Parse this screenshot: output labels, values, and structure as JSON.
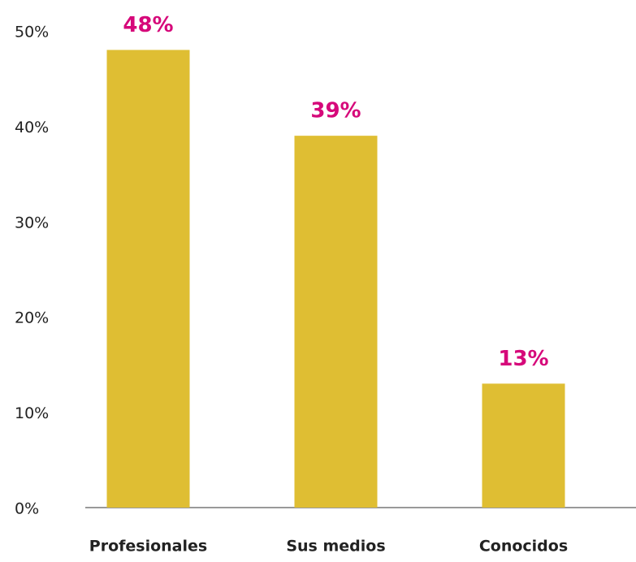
{
  "chart_data": {
    "type": "bar",
    "categories": [
      "Profesionales",
      "Sus medios",
      "Conocidos"
    ],
    "values": [
      48,
      39,
      13
    ],
    "value_labels": [
      "48%",
      "39%",
      "13%"
    ],
    "color": "#dfbe33",
    "label_color": "#d6087a",
    "ylim": [
      0,
      50
    ],
    "yticks": [
      {
        "value": 0,
        "label": "0%"
      },
      {
        "value": 10,
        "label": "10%"
      },
      {
        "value": 20,
        "label": "20%"
      },
      {
        "value": 30,
        "label": "30%"
      },
      {
        "value": 40,
        "label": "40%"
      },
      {
        "value": 50,
        "label": "50%"
      }
    ],
    "grid": false
  }
}
